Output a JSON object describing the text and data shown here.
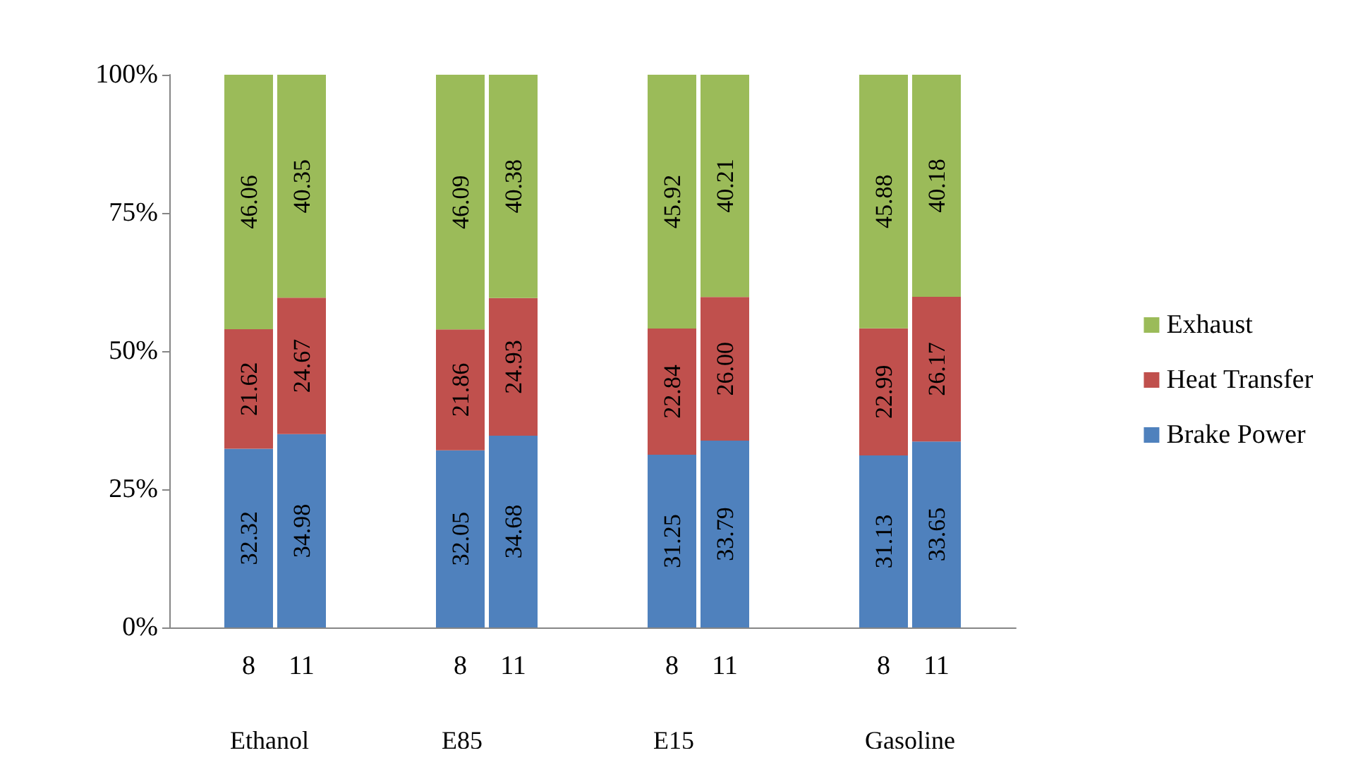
{
  "chart_data": {
    "type": "bar",
    "stacked": true,
    "categories": [
      null,
      "8",
      "11",
      null,
      null,
      "8",
      "11",
      null,
      null,
      "8",
      "11",
      null,
      null,
      "8",
      "11",
      null
    ],
    "series": [
      {
        "name": "Brake Power",
        "color": "#4f81bd",
        "values": [
          null,
          32.32,
          34.98,
          null,
          null,
          32.05,
          34.68,
          null,
          null,
          31.25,
          33.79,
          null,
          null,
          31.13,
          33.65,
          null
        ],
        "value_labels": [
          null,
          "32.32",
          "34.98",
          null,
          null,
          "32.05",
          "34.68",
          null,
          null,
          "31.25",
          "33.79",
          null,
          null,
          "31.13",
          "33.65",
          null
        ]
      },
      {
        "name": "Heat Transfer",
        "color": "#c0504d",
        "values": [
          null,
          21.62,
          24.67,
          null,
          null,
          21.86,
          24.93,
          null,
          null,
          22.84,
          26.0,
          null,
          null,
          22.99,
          26.17,
          null
        ],
        "value_labels": [
          null,
          "21.62",
          "24.67",
          null,
          null,
          "21.86",
          "24.93",
          null,
          null,
          "22.84",
          "26.00",
          null,
          null,
          "22.99",
          "26.17",
          null
        ]
      },
      {
        "name": "Exhaust",
        "color": "#9bbb59",
        "values": [
          null,
          46.06,
          40.35,
          null,
          null,
          46.09,
          40.38,
          null,
          null,
          45.92,
          40.21,
          null,
          null,
          45.88,
          40.18,
          null
        ],
        "value_labels": [
          null,
          "46.06",
          "40.35",
          null,
          null,
          "46.09",
          "40.38",
          null,
          null,
          "45.92",
          "40.21",
          null,
          null,
          "45.88",
          "40.18",
          null
        ]
      }
    ],
    "ylim": [
      0,
      100
    ],
    "yticks": [
      {
        "value": 0,
        "label": "0%"
      },
      {
        "value": 25,
        "label": "25%"
      },
      {
        "value": 50,
        "label": "50%"
      },
      {
        "value": 75,
        "label": "75%"
      },
      {
        "value": 100,
        "label": "100%"
      }
    ],
    "annotations": [
      "Ethanol",
      "E85",
      "E15",
      "Gasoline"
    ],
    "grid": false,
    "legend": "right"
  }
}
